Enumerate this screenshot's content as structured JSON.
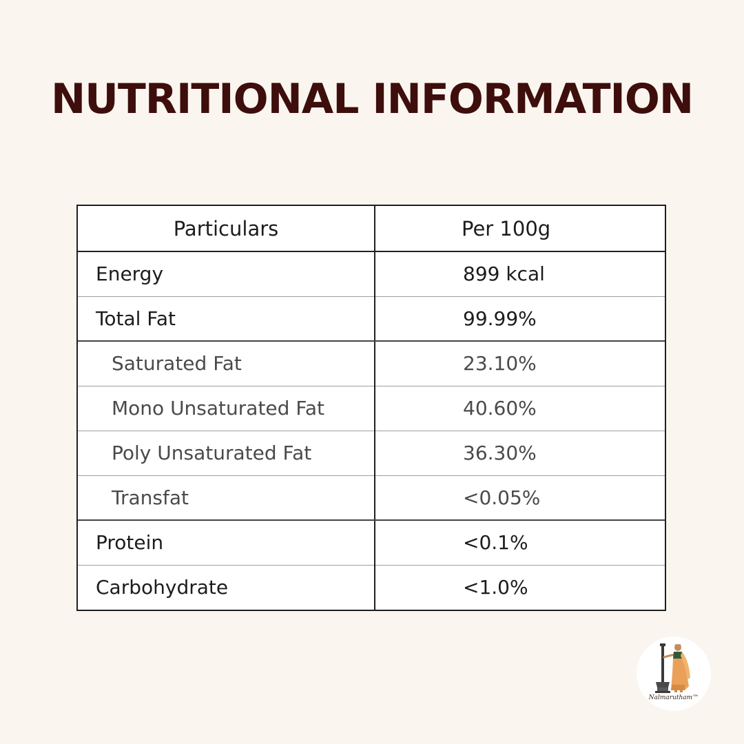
{
  "title": "NUTRITIONAL INFORMATION",
  "table": {
    "headers": [
      "Particulars",
      "Per 100g"
    ],
    "rows": [
      {
        "label": "Energy",
        "value": "899 kcal"
      },
      {
        "label": "Total Fat",
        "value": "99.99%"
      },
      {
        "label": "Saturated Fat",
        "value": "23.10%"
      },
      {
        "label": "Mono Unsaturated Fat",
        "value": "40.60%"
      },
      {
        "label": "Poly Unsaturated Fat",
        "value": "36.30%"
      },
      {
        "label": "Transfat",
        "value": "<0.05%"
      },
      {
        "label": "Protein",
        "value": "<0.1%"
      },
      {
        "label": "Carbohydrate",
        "value": "<1.0%"
      }
    ]
  },
  "logo": {
    "text": "Nalmarutham™",
    "icon": "woman-with-pestle-icon",
    "colors": {
      "saree": "#e9a15a",
      "blouse": "#2f5a3a",
      "skin": "#c78a5a",
      "mortar": "#4a4a4a"
    }
  },
  "colors": {
    "background": "#faf5ef",
    "title": "#3d0e0c",
    "table_border": "#1f1f1f"
  }
}
